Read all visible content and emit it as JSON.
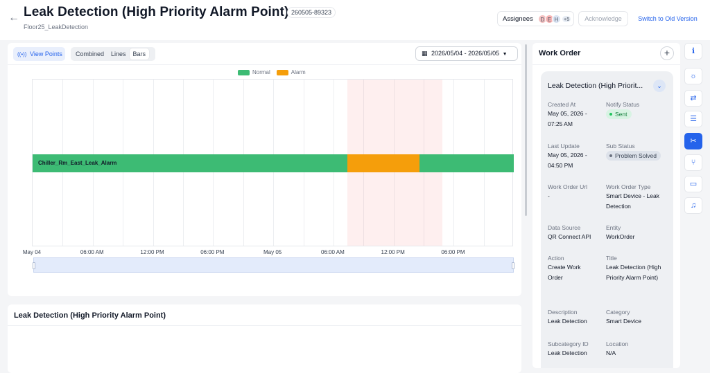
{
  "header": {
    "title": "Leak Detection (High Priority Alarm Point)",
    "id_badge": "260505-89323",
    "subtitle": "Floor25_LeakDetection",
    "assignees_label": "Assignees",
    "avatars": [
      "D",
      "E",
      "H"
    ],
    "avatars_more": "+5",
    "acknowledge_label": "Acknowledge",
    "switch_label": "Switch to Old Version"
  },
  "toolbar": {
    "view_points_label": "View Points",
    "modes": [
      "Combined",
      "Lines",
      "Bars"
    ],
    "active_mode": "Bars",
    "date_range": "2026/05/04 - 2026/05/05"
  },
  "chart_data": {
    "type": "bar",
    "orientation": "horizontal-timeline",
    "legend": [
      {
        "name": "Normal",
        "color": "#3dbb74"
      },
      {
        "name": "Alarm",
        "color": "#f59e0b"
      }
    ],
    "legend_placement": "top-center",
    "grid": true,
    "x_range": [
      "2026-05-04T00:00",
      "2026-05-05T23:59"
    ],
    "x_ticks": [
      {
        "label": "May 04",
        "t": 0
      },
      {
        "label": "06:00 AM",
        "t": 6
      },
      {
        "label": "12:00 PM",
        "t": 12
      },
      {
        "label": "06:00 PM",
        "t": 18
      },
      {
        "label": "May 05",
        "t": 24
      },
      {
        "label": "06:00 AM",
        "t": 30
      },
      {
        "label": "12:00 PM",
        "t": 36
      },
      {
        "label": "06:00 PM",
        "t": 42
      }
    ],
    "highlight": {
      "start": "2026-05-05T07:25",
      "end": "2026-05-05T16:50"
    },
    "series": [
      {
        "name": "Chiller_Rm_East_Leak_Alarm",
        "segments": [
          {
            "state": "Normal",
            "start": "2026-05-04T00:00",
            "end": "2026-05-05T07:25"
          },
          {
            "state": "Alarm",
            "start": "2026-05-05T07:25",
            "end": "2026-05-05T14:35"
          },
          {
            "state": "Normal",
            "start": "2026-05-05T14:35",
            "end": "2026-05-05T23:59"
          }
        ]
      }
    ]
  },
  "lower_card": {
    "title": "Leak Detection (High Priority Alarm Point)"
  },
  "work_order": {
    "heading": "Work Order",
    "add_label": "+",
    "card_title": "Leak Detection (High Priorit...",
    "fields": [
      {
        "label": "Created At",
        "value": "May 05, 2026 - 07:25 AM"
      },
      {
        "label": "Notify Status",
        "value": "Sent"
      },
      {
        "label": "Last Update",
        "value": "May 05, 2026 - 04:50 PM"
      },
      {
        "label": "Sub Status",
        "value": "Problem Solved"
      },
      {
        "label": "Work Order Url",
        "value": "-"
      },
      {
        "label": "Work Order Type",
        "value": "Smart Device - Leak Detection"
      },
      {
        "label": "Data Source",
        "value": "QR Connect API"
      },
      {
        "label": "Entity",
        "value": "WorkOrder"
      },
      {
        "label": "Action",
        "value": "Create Work Order"
      },
      {
        "label": "Title",
        "value": "Leak Detection (High Priority Alarm Point)"
      },
      {
        "label": "Description",
        "value": "Leak Detection"
      },
      {
        "label": "Category",
        "value": "Smart Device"
      },
      {
        "label": "Subcategory ID",
        "value": "Leak Detection"
      },
      {
        "label": "Location",
        "value": "N/A"
      }
    ]
  },
  "rail": [
    {
      "icon": "info-icon",
      "glyph": "ℹ"
    },
    {
      "icon": "lightbulb-icon",
      "glyph": "☼"
    },
    {
      "icon": "sliders-icon",
      "glyph": "⇄"
    },
    {
      "icon": "database-icon",
      "glyph": "☰"
    },
    {
      "icon": "wrench-icon",
      "glyph": "✂"
    },
    {
      "icon": "git-branch-icon",
      "glyph": "⑂"
    },
    {
      "icon": "comment-icon",
      "glyph": "▭"
    },
    {
      "icon": "alarm-bell-icon",
      "glyph": "♫"
    }
  ]
}
